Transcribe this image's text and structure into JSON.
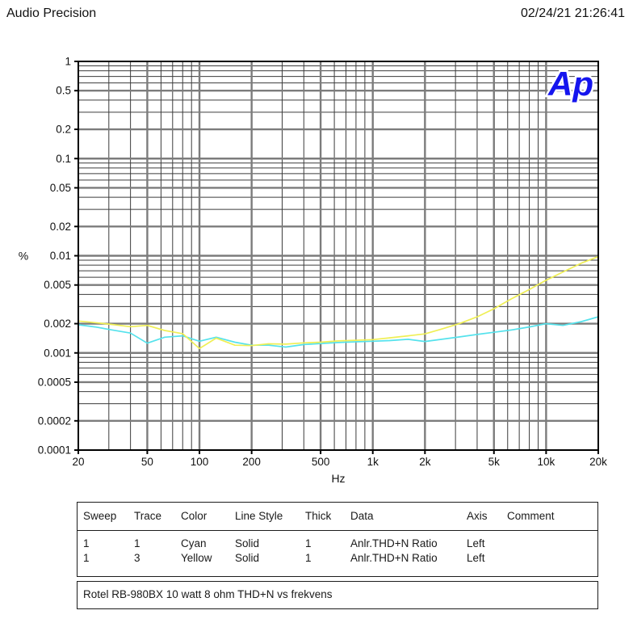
{
  "header": {
    "app_name": "Audio Precision",
    "timestamp": "02/24/21 21:26:41"
  },
  "logo": {
    "text": "Ap",
    "color": "#1515ee"
  },
  "chart_data": {
    "type": "line",
    "title": "",
    "xlabel": "Hz",
    "ylabel": "%",
    "x_scale": "log",
    "y_scale": "log",
    "xlim": [
      20,
      20000
    ],
    "ylim": [
      0.0001,
      1
    ],
    "grid": "log minor gridlines on, labeled lines emphasized",
    "legend_position": "table below chart",
    "x_ticks": [
      {
        "v": 20,
        "label": "20"
      },
      {
        "v": 50,
        "label": "50"
      },
      {
        "v": 100,
        "label": "100"
      },
      {
        "v": 200,
        "label": "200"
      },
      {
        "v": 500,
        "label": "500"
      },
      {
        "v": 1000,
        "label": "1k"
      },
      {
        "v": 2000,
        "label": "2k"
      },
      {
        "v": 5000,
        "label": "5k"
      },
      {
        "v": 10000,
        "label": "10k"
      },
      {
        "v": 20000,
        "label": "20k"
      }
    ],
    "y_ticks": [
      {
        "v": 1,
        "label": "1"
      },
      {
        "v": 0.5,
        "label": "0.5"
      },
      {
        "v": 0.2,
        "label": "0.2"
      },
      {
        "v": 0.1,
        "label": "0.1"
      },
      {
        "v": 0.05,
        "label": "0.05"
      },
      {
        "v": 0.02,
        "label": "0.02"
      },
      {
        "v": 0.01,
        "label": "0.01"
      },
      {
        "v": 0.005,
        "label": "0.005"
      },
      {
        "v": 0.002,
        "label": "0.002"
      },
      {
        "v": 0.001,
        "label": "0.001"
      },
      {
        "v": 0.0005,
        "label": "0.0005"
      },
      {
        "v": 0.0002,
        "label": "0.0002"
      },
      {
        "v": 0.0001,
        "label": "0.0001"
      }
    ],
    "x": [
      20,
      25,
      31.5,
      40,
      50,
      63,
      80,
      100,
      125,
      160,
      200,
      250,
      315,
      400,
      500,
      630,
      800,
      1000,
      1250,
      1600,
      2000,
      2500,
      3150,
      4000,
      5000,
      6300,
      8000,
      10000,
      12500,
      16000,
      20000
    ],
    "series": [
      {
        "name": "Anlr.THD+N Ratio (Trace 1, Cyan)",
        "color": "#55e2ec",
        "values": [
          0.00195,
          0.00185,
          0.00172,
          0.0016,
          0.00126,
          0.00145,
          0.0015,
          0.00132,
          0.00145,
          0.00129,
          0.0012,
          0.0012,
          0.00115,
          0.00122,
          0.00125,
          0.00128,
          0.0013,
          0.00132,
          0.00134,
          0.00138,
          0.00131,
          0.00138,
          0.00146,
          0.00155,
          0.00163,
          0.00172,
          0.00185,
          0.002,
          0.00192,
          0.0021,
          0.00235
        ]
      },
      {
        "name": "Anlr.THD+N Ratio (Trace 3, Yellow)",
        "color": "#efef55",
        "values": [
          0.00213,
          0.00205,
          0.00196,
          0.00186,
          0.00192,
          0.0017,
          0.00158,
          0.00111,
          0.00142,
          0.0012,
          0.00119,
          0.00124,
          0.00123,
          0.00127,
          0.00129,
          0.00133,
          0.00135,
          0.00137,
          0.00143,
          0.0015,
          0.00157,
          0.00176,
          0.002,
          0.00235,
          0.00285,
          0.0036,
          0.0045,
          0.0056,
          0.0068,
          0.0084,
          0.0098
        ]
      }
    ]
  },
  "legend": {
    "columns": [
      "Sweep",
      "Trace",
      "Color",
      "Line Style",
      "Thick",
      "Data",
      "Axis",
      "Comment"
    ],
    "rows": [
      {
        "sweep": "1",
        "trace": "1",
        "color": "Cyan",
        "line_style": "Solid",
        "thick": "1",
        "data": "Anlr.THD+N Ratio",
        "axis": "Left",
        "comment": ""
      },
      {
        "sweep": "1",
        "trace": "3",
        "color": "Yellow",
        "line_style": "Solid",
        "thick": "1",
        "data": "Anlr.THD+N Ratio",
        "axis": "Left",
        "comment": ""
      }
    ],
    "comment": "Rotel RB-980BX 10 watt 8 ohm THD+N vs frekvens"
  }
}
